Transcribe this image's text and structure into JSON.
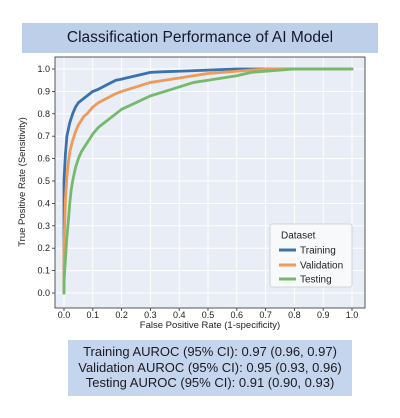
{
  "chart_data": {
    "type": "line",
    "title": "Classification Performance of AI Model",
    "xlabel": "False Positive Rate (1-specificity)",
    "ylabel": "True Positive Rate (Sensitivity)",
    "xlim": [
      0,
      1
    ],
    "ylim": [
      0,
      1
    ],
    "xticks": [
      "0.0",
      "0.1",
      "0.2",
      "0.3",
      "0.4",
      "0.5",
      "0.6",
      "0.7",
      "0.8",
      "0.9",
      "1.0"
    ],
    "yticks": [
      "0.0",
      "0.1",
      "0.2",
      "0.3",
      "0.4",
      "0.5",
      "0.6",
      "0.7",
      "0.8",
      "0.9",
      "1.0"
    ],
    "grid": true,
    "legend": {
      "title": "Dataset",
      "position": "lower-right"
    },
    "series": [
      {
        "name": "Training",
        "color": "#3a72ab",
        "x": [
          0,
          0,
          0.005,
          0.01,
          0.02,
          0.03,
          0.04,
          0.05,
          0.07,
          0.09,
          0.1,
          0.12,
          0.15,
          0.18,
          0.2,
          0.25,
          0.3,
          0.35,
          0.4,
          0.5,
          0.6,
          0.7,
          0.8,
          0.9,
          1.0
        ],
        "y": [
          0,
          0.5,
          0.62,
          0.7,
          0.76,
          0.8,
          0.83,
          0.85,
          0.87,
          0.89,
          0.9,
          0.91,
          0.93,
          0.95,
          0.955,
          0.97,
          0.985,
          0.988,
          0.99,
          0.995,
          1.0,
          1.0,
          1.0,
          1.0,
          1.0
        ]
      },
      {
        "name": "Validation",
        "color": "#ef9a57",
        "x": [
          0,
          0,
          0.005,
          0.01,
          0.015,
          0.02,
          0.03,
          0.04,
          0.05,
          0.06,
          0.07,
          0.08,
          0.1,
          0.12,
          0.15,
          0.18,
          0.2,
          0.25,
          0.3,
          0.35,
          0.4,
          0.45,
          0.5,
          0.6,
          0.7,
          0.8,
          0.9,
          1.0
        ],
        "y": [
          0,
          0.2,
          0.42,
          0.52,
          0.58,
          0.63,
          0.68,
          0.72,
          0.75,
          0.77,
          0.79,
          0.8,
          0.83,
          0.85,
          0.87,
          0.89,
          0.9,
          0.92,
          0.94,
          0.95,
          0.96,
          0.97,
          0.98,
          0.99,
          1.0,
          1.0,
          1.0,
          1.0
        ]
      },
      {
        "name": "Testing",
        "color": "#74ba6d",
        "x": [
          0,
          0,
          0.005,
          0.01,
          0.015,
          0.02,
          0.025,
          0.03,
          0.04,
          0.05,
          0.06,
          0.07,
          0.08,
          0.1,
          0.12,
          0.15,
          0.18,
          0.2,
          0.25,
          0.3,
          0.35,
          0.4,
          0.45,
          0.5,
          0.55,
          0.6,
          0.65,
          0.7,
          0.8,
          0.9,
          1.0
        ],
        "y": [
          0,
          0.05,
          0.15,
          0.25,
          0.32,
          0.4,
          0.46,
          0.5,
          0.56,
          0.6,
          0.63,
          0.65,
          0.67,
          0.71,
          0.74,
          0.77,
          0.8,
          0.82,
          0.85,
          0.88,
          0.9,
          0.92,
          0.94,
          0.95,
          0.96,
          0.97,
          0.985,
          0.99,
          1.0,
          1.0,
          1.0
        ]
      }
    ]
  },
  "auroc_summary": [
    "Training AUROC (95% CI): 0.97 (0.96, 0.97)",
    "Validation AUROC (95% CI): 0.95 (0.93, 0.96)",
    "Testing AUROC (95% CI): 0.91 (0.90, 0.93)"
  ]
}
